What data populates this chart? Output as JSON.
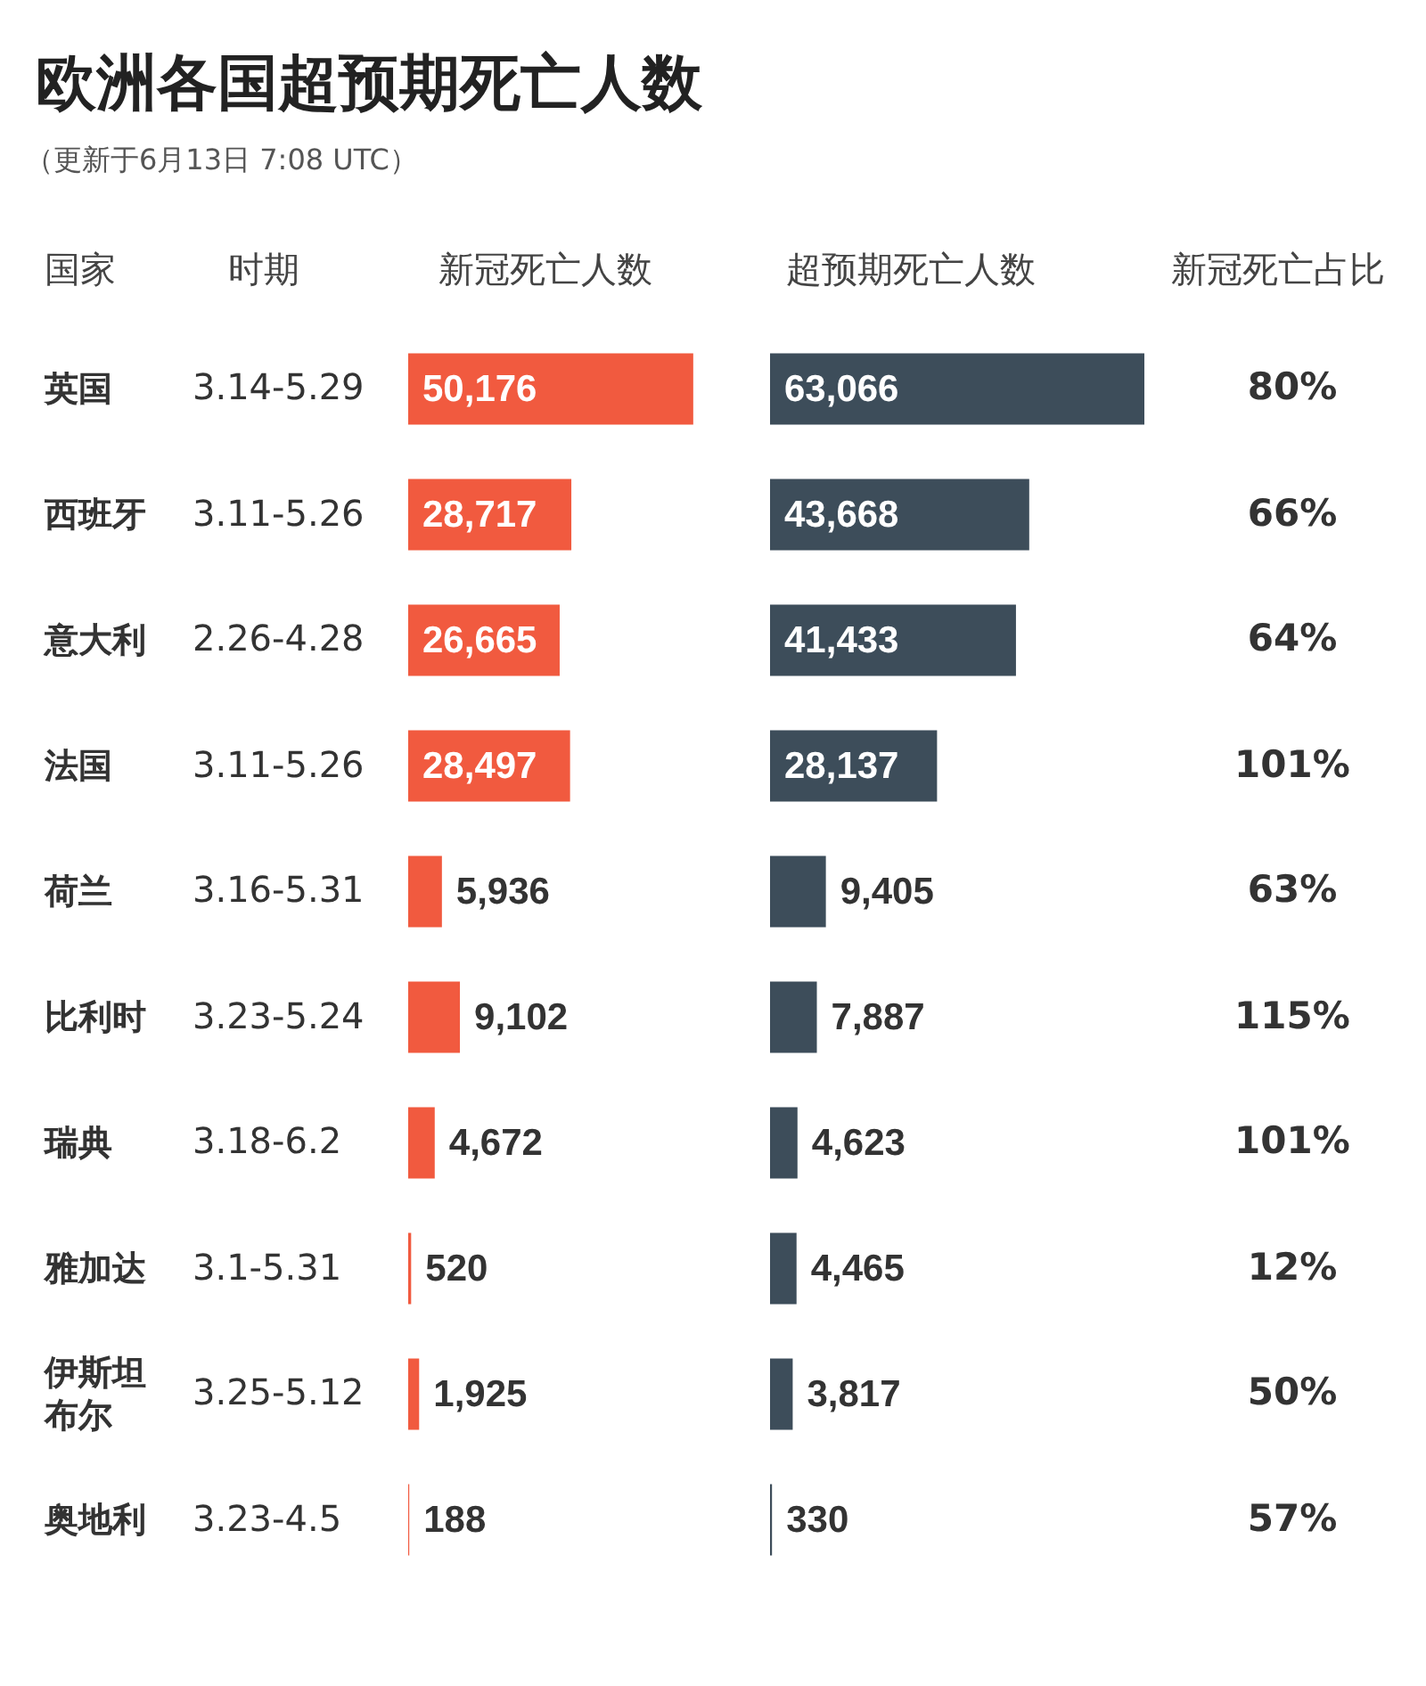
{
  "chart_data": [
    {
      "type": "other",
      "title": "欧洲各国超预期死亡人数",
      "subtitle": "（更新于6月13日 7:08 UTC）"
    },
    {
      "type": "other",
      "title": "时期",
      "annotations": [
        "3.14-5.29",
        "3.11-5.26",
        "2.26-4.28",
        "3.11-5.26",
        "3.16-5.31",
        "3.23-5.24",
        "3.18-6.2",
        "3.1-5.31",
        "3.25-5.12",
        "3.23-4.5"
      ]
    },
    {
      "type": "bar",
      "orientation": "horizontal",
      "title": "新冠死亡人数",
      "ylabel": "国家",
      "categories": [
        "英国",
        "西班牙",
        "意大利",
        "法国",
        "荷兰",
        "比利时",
        "瑞典",
        "雅加达",
        "伊斯坦布尔",
        "奥地利"
      ],
      "series": [
        {
          "color": "#f15a3f",
          "values": [
            50176,
            28717,
            26665,
            28497,
            5936,
            9102,
            4672,
            520,
            1925,
            188
          ],
          "value_labels": [
            "50,176",
            "28,717",
            "26,665",
            "28,497",
            "5,936",
            "9,102",
            "4,672",
            "520",
            "1,925",
            "188"
          ]
        }
      ]
    },
    {
      "type": "bar",
      "orientation": "horizontal",
      "title": "超预期死亡人数",
      "tick_labels": false,
      "categories": [
        "英国",
        "西班牙",
        "意大利",
        "法国",
        "荷兰",
        "比利时",
        "瑞典",
        "雅加达",
        "伊斯坦布尔",
        "奥地利"
      ],
      "series": [
        {
          "color": "#3d4d5a",
          "values": [
            63066,
            43668,
            41433,
            28137,
            9405,
            7887,
            4623,
            4465,
            3817,
            330
          ],
          "value_labels": [
            "63,066",
            "43,668",
            "41,433",
            "28,137",
            "9,405",
            "7,887",
            "4,623",
            "4,465",
            "3,817",
            "330"
          ]
        }
      ]
    },
    {
      "type": "other",
      "title": "新冠死亡占比",
      "annotations": [
        "80%",
        "66%",
        "64%",
        "101%",
        "63%",
        "115%",
        "101%",
        "12%",
        "50%",
        "57%"
      ]
    }
  ]
}
